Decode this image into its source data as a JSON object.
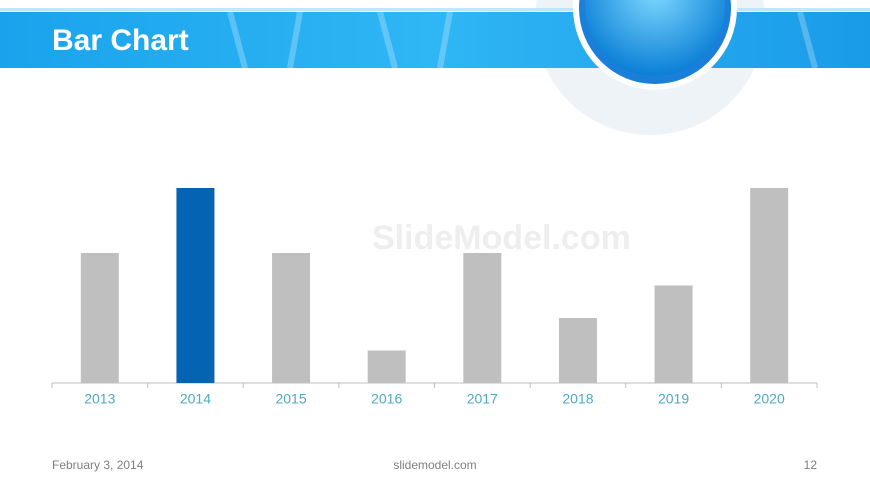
{
  "header": {
    "title": "Bar Chart"
  },
  "chart_data": {
    "type": "bar",
    "categories": [
      "2013",
      "2014",
      "2015",
      "2016",
      "2017",
      "2018",
      "2019",
      "2020"
    ],
    "values": [
      2,
      3,
      2,
      0.5,
      2,
      1,
      1.5,
      3
    ],
    "colors": [
      "#bfbfbf",
      "#0563b4",
      "#bfbfbf",
      "#bfbfbf",
      "#bfbfbf",
      "#bfbfbf",
      "#bfbfbf",
      "#bfbfbf"
    ]
  },
  "watermark": "SlideModel.com",
  "footer": {
    "date": "February 3, 2014",
    "site": "slidemodel.com",
    "page": "12"
  }
}
